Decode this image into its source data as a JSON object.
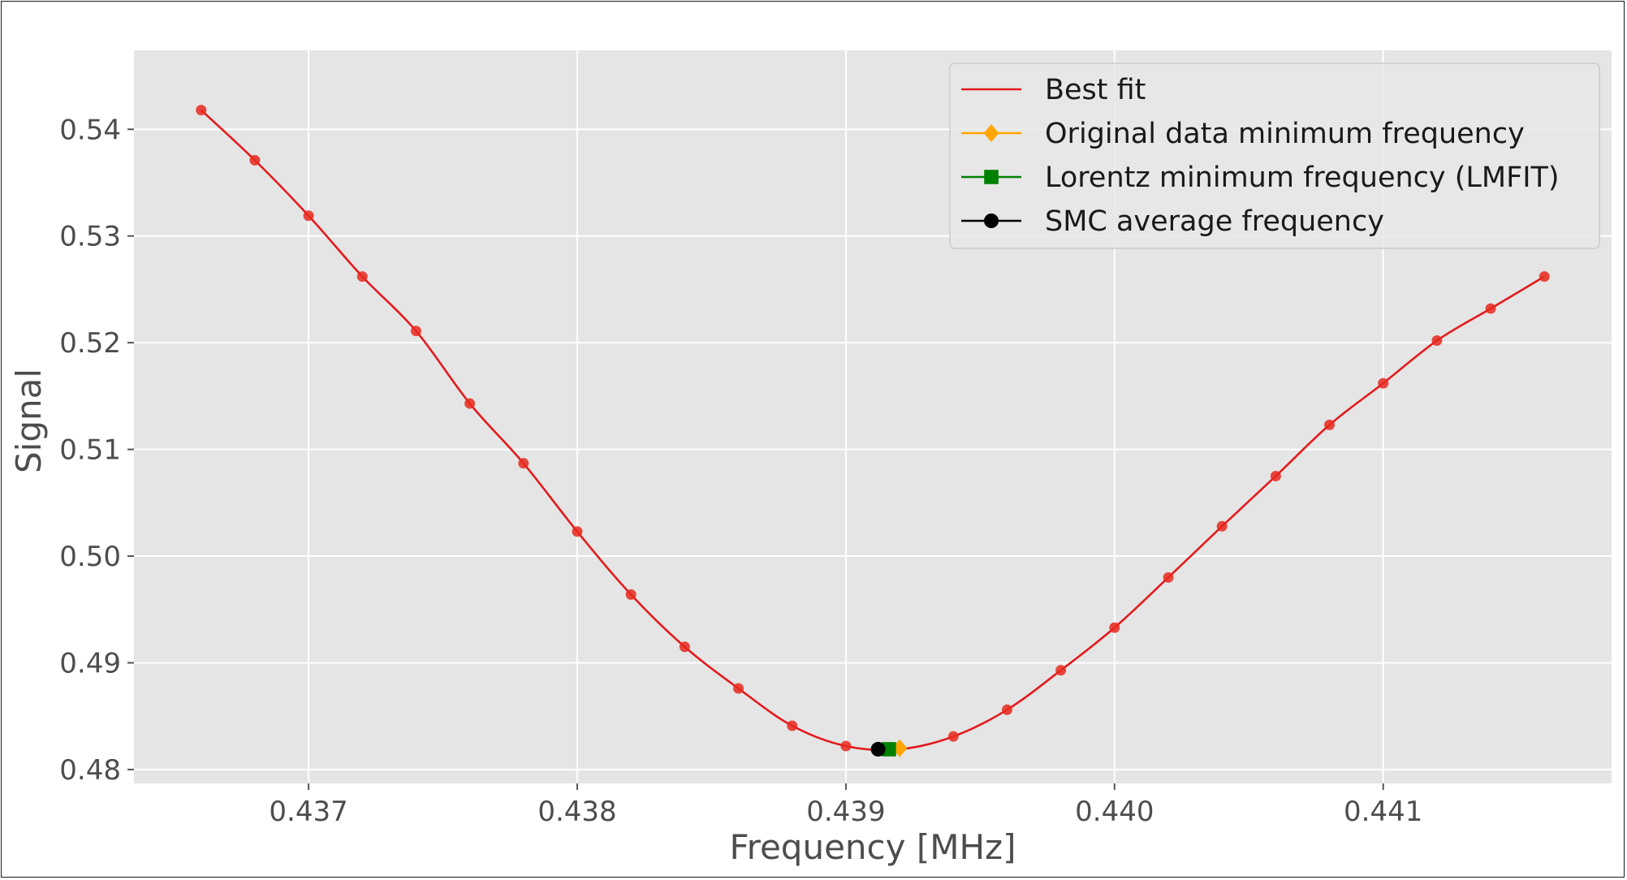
{
  "chart_data": {
    "type": "line",
    "title": "",
    "xlabel": "Frequency [MHz]",
    "ylabel": "Signal",
    "xlim": [
      0.43635,
      0.44185
    ],
    "ylim": [
      0.4787,
      0.5474
    ],
    "grid": true,
    "legend_position": "top-right",
    "x_ticks": [
      0.437,
      0.438,
      0.439,
      0.44,
      0.441
    ],
    "x_tick_labels": [
      "0.437",
      "0.438",
      "0.439",
      "0.440",
      "0.441"
    ],
    "y_ticks": [
      0.48,
      0.49,
      0.5,
      0.51,
      0.52,
      0.53,
      0.54
    ],
    "y_tick_labels": [
      "0.48",
      "0.49",
      "0.50",
      "0.51",
      "0.52",
      "0.53",
      "0.54"
    ],
    "colors": {
      "best_fit": "#e41a1c",
      "data": "#e8291d",
      "original_min": "#ffa500",
      "lorentz_min": "#008000",
      "smc_avg": "#000000",
      "plot_bg": "#e5e5e5",
      "grid": "#ffffff"
    },
    "series": [
      {
        "name": "Best fit",
        "type": "line",
        "x": [
          0.4366,
          0.4368,
          0.437,
          0.4372,
          0.4374,
          0.4376,
          0.4378,
          0.438,
          0.4382,
          0.4384,
          0.4386,
          0.4388,
          0.439,
          0.4392,
          0.4394,
          0.4396,
          0.4398,
          0.44,
          0.4402,
          0.4404,
          0.4406,
          0.4408,
          0.441,
          0.4412,
          0.4414,
          0.4416
        ],
        "y": [
          0.5418,
          0.5371,
          0.5319,
          0.5262,
          0.5211,
          0.5143,
          0.5087,
          0.5023,
          0.4964,
          0.4915,
          0.4876,
          0.4841,
          0.4822,
          0.4819,
          0.4831,
          0.4856,
          0.4893,
          0.4933,
          0.498,
          0.5028,
          0.5075,
          0.5123,
          0.5162,
          0.5202,
          0.5232,
          0.5262
        ]
      },
      {
        "name": "",
        "type": "scatter",
        "x": [
          0.4366,
          0.4368,
          0.437,
          0.4372,
          0.4374,
          0.4376,
          0.4378,
          0.438,
          0.4382,
          0.4384,
          0.4386,
          0.4388,
          0.439,
          0.4394,
          0.4396,
          0.4398,
          0.44,
          0.4402,
          0.4404,
          0.4406,
          0.4408,
          0.441,
          0.4412,
          0.4414,
          0.4416
        ],
        "y": [
          0.5418,
          0.5371,
          0.5319,
          0.5262,
          0.5211,
          0.5143,
          0.5087,
          0.5023,
          0.4964,
          0.4915,
          0.4876,
          0.4841,
          0.4822,
          0.4831,
          0.4856,
          0.4893,
          0.4933,
          0.498,
          0.5028,
          0.5075,
          0.5123,
          0.5162,
          0.5202,
          0.5232,
          0.5262
        ]
      }
    ],
    "markers": [
      {
        "name": "Original data minimum frequency",
        "shape": "diamond",
        "x": 0.4392,
        "y": 0.482
      },
      {
        "name": "Lorentz minimum frequency (LMFIT)",
        "shape": "square",
        "x": 0.43916,
        "y": 0.4819
      },
      {
        "name": "SMC average frequency",
        "shape": "circle",
        "x": 0.43912,
        "y": 0.4819
      }
    ],
    "legend": [
      {
        "label": "Best fit",
        "shape": "line"
      },
      {
        "label": "Original data minimum frequency",
        "shape": "diamond"
      },
      {
        "label": "Lorentz minimum frequency (LMFIT)",
        "shape": "square"
      },
      {
        "label": "SMC average frequency",
        "shape": "circle"
      }
    ]
  }
}
